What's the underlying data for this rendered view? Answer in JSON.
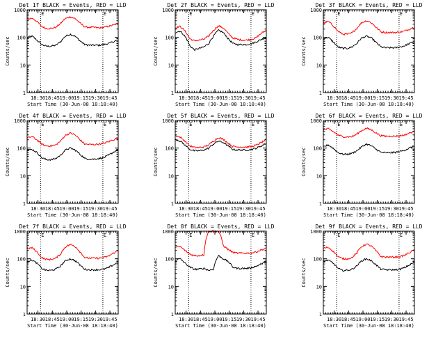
{
  "figure": {
    "ylabel": "Counts/sec",
    "xlabel": "Start Time (30-Jun-08 18:18:40)",
    "y_tick_labels": [
      "1",
      "10",
      "100",
      "1000"
    ],
    "x_tick_labels": [
      "18:30",
      "18:45",
      "19:00",
      "19:15",
      "19:30",
      "19:45"
    ],
    "marker_label": "E",
    "colors": {
      "events": "#000000",
      "lld": "#ff0000",
      "axes": "#000000",
      "background": "#ffffff"
    }
  },
  "chart_data": [
    {
      "type": "line",
      "title": "Det 1f BLACK = Events, RED = LLD",
      "yscale": "log",
      "ylim": [
        1,
        1000
      ],
      "xlim_minutes": [
        0,
        95
      ],
      "x_tick_minutes": [
        11.33,
        26.33,
        41.33,
        56.33,
        71.33,
        86.33
      ],
      "dotted_markers_minutes": [
        14,
        79
      ],
      "series": [
        {
          "name": "Events",
          "color": "#000000",
          "x_minutes": [
            0,
            5,
            10,
            15,
            20,
            25,
            30,
            35,
            40,
            45,
            50,
            55,
            60,
            65,
            70,
            75,
            80,
            85,
            90,
            95
          ],
          "values": [
            100,
            110,
            80,
            55,
            48,
            48,
            52,
            70,
            110,
            130,
            110,
            75,
            55,
            52,
            52,
            52,
            55,
            60,
            70,
            80
          ]
        },
        {
          "name": "LLD",
          "color": "#ff0000",
          "x_minutes": [
            0,
            5,
            10,
            15,
            20,
            25,
            30,
            35,
            40,
            45,
            50,
            55,
            60,
            65,
            70,
            75,
            80,
            85,
            90,
            95
          ],
          "values": [
            450,
            500,
            380,
            250,
            210,
            210,
            230,
            320,
            480,
            550,
            480,
            330,
            240,
            230,
            230,
            220,
            230,
            250,
            280,
            320
          ]
        }
      ]
    },
    {
      "type": "line",
      "title": "Det 2f BLACK = Events, RED = LLD",
      "yscale": "log",
      "ylim": [
        1,
        1000
      ],
      "xlim_minutes": [
        0,
        95
      ],
      "x_tick_minutes": [
        11.33,
        26.33,
        41.33,
        56.33,
        71.33,
        86.33
      ],
      "dotted_markers_minutes": [
        14,
        79
      ],
      "series": [
        {
          "name": "Events",
          "color": "#000000",
          "x_minutes": [
            0,
            5,
            10,
            15,
            20,
            25,
            30,
            35,
            40,
            45,
            50,
            55,
            60,
            65,
            70,
            75,
            80,
            85,
            90,
            95
          ],
          "values": [
            150,
            170,
            110,
            50,
            35,
            40,
            45,
            60,
            110,
            180,
            150,
            90,
            60,
            55,
            55,
            55,
            60,
            70,
            85,
            100
          ]
        },
        {
          "name": "LLD",
          "color": "#ff0000",
          "x_minutes": [
            0,
            5,
            10,
            15,
            20,
            25,
            30,
            35,
            40,
            45,
            50,
            55,
            60,
            65,
            70,
            75,
            80,
            85,
            90,
            95
          ],
          "values": [
            220,
            250,
            170,
            90,
            75,
            80,
            85,
            110,
            180,
            260,
            220,
            140,
            95,
            85,
            80,
            80,
            85,
            100,
            140,
            180
          ]
        }
      ]
    },
    {
      "type": "line",
      "title": "Det 3f BLACK = Events, RED = LLD",
      "yscale": "log",
      "ylim": [
        1,
        1000
      ],
      "xlim_minutes": [
        0,
        95
      ],
      "x_tick_minutes": [
        11.33,
        26.33,
        41.33,
        56.33,
        71.33,
        86.33
      ],
      "dotted_markers_minutes": [
        14,
        79
      ],
      "series": [
        {
          "name": "Events",
          "color": "#000000",
          "x_minutes": [
            0,
            5,
            10,
            15,
            20,
            25,
            30,
            35,
            40,
            45,
            50,
            55,
            60,
            65,
            70,
            75,
            80,
            85,
            90,
            95
          ],
          "values": [
            90,
            100,
            70,
            45,
            40,
            40,
            45,
            60,
            95,
            110,
            95,
            65,
            45,
            42,
            42,
            42,
            45,
            50,
            60,
            70
          ]
        },
        {
          "name": "LLD",
          "color": "#ff0000",
          "x_minutes": [
            0,
            5,
            10,
            15,
            20,
            25,
            30,
            35,
            40,
            45,
            50,
            55,
            60,
            65,
            70,
            75,
            80,
            85,
            90,
            95
          ],
          "values": [
            320,
            380,
            270,
            170,
            130,
            130,
            145,
            210,
            340,
            400,
            340,
            230,
            160,
            150,
            150,
            150,
            155,
            170,
            200,
            240
          ]
        }
      ]
    },
    {
      "type": "line",
      "title": "Det 4f BLACK = Events, RED = LLD",
      "yscale": "log",
      "ylim": [
        1,
        1000
      ],
      "xlim_minutes": [
        0,
        95
      ],
      "x_tick_minutes": [
        11.33,
        26.33,
        41.33,
        56.33,
        71.33,
        86.33
      ],
      "dotted_markers_minutes": [
        14,
        79
      ],
      "series": [
        {
          "name": "Events",
          "color": "#000000",
          "x_minutes": [
            0,
            5,
            10,
            15,
            20,
            25,
            30,
            35,
            40,
            45,
            50,
            55,
            60,
            65,
            70,
            75,
            80,
            85,
            90,
            95
          ],
          "values": [
            80,
            90,
            70,
            45,
            38,
            38,
            42,
            55,
            85,
            100,
            85,
            60,
            42,
            40,
            40,
            42,
            45,
            55,
            70,
            90
          ]
        },
        {
          "name": "LLD",
          "color": "#ff0000",
          "x_minutes": [
            0,
            5,
            10,
            15,
            20,
            25,
            30,
            35,
            40,
            45,
            50,
            55,
            60,
            65,
            70,
            75,
            80,
            85,
            90,
            95
          ],
          "values": [
            230,
            260,
            200,
            140,
            120,
            120,
            130,
            180,
            290,
            350,
            300,
            200,
            140,
            135,
            135,
            140,
            150,
            170,
            200,
            240
          ]
        }
      ]
    },
    {
      "type": "line",
      "title": "Det 5f BLACK = Events, RED = LLD",
      "yscale": "log",
      "ylim": [
        1,
        1000
      ],
      "xlim_minutes": [
        0,
        95
      ],
      "x_tick_minutes": [
        11.33,
        26.33,
        41.33,
        56.33,
        71.33,
        86.33
      ],
      "dotted_markers_minutes": [
        14,
        79
      ],
      "series": [
        {
          "name": "Events",
          "color": "#000000",
          "x_minutes": [
            0,
            5,
            10,
            15,
            20,
            25,
            30,
            35,
            40,
            45,
            50,
            55,
            60,
            65,
            70,
            75,
            80,
            85,
            90,
            95
          ],
          "values": [
            210,
            180,
            130,
            90,
            80,
            80,
            85,
            100,
            140,
            180,
            160,
            120,
            90,
            85,
            85,
            85,
            90,
            100,
            120,
            150
          ]
        },
        {
          "name": "LLD",
          "color": "#ff0000",
          "x_minutes": [
            0,
            5,
            10,
            15,
            20,
            25,
            30,
            35,
            40,
            45,
            50,
            55,
            60,
            65,
            70,
            75,
            80,
            85,
            90,
            95
          ],
          "values": [
            280,
            250,
            180,
            120,
            105,
            105,
            110,
            130,
            180,
            240,
            210,
            150,
            115,
            110,
            110,
            110,
            115,
            130,
            160,
            200
          ]
        }
      ]
    },
    {
      "type": "line",
      "title": "Det 6f BLACK = Events, RED = LLD",
      "yscale": "log",
      "ylim": [
        1,
        1000
      ],
      "xlim_minutes": [
        0,
        95
      ],
      "x_tick_minutes": [
        11.33,
        26.33,
        41.33,
        56.33,
        71.33,
        86.33
      ],
      "dotted_markers_minutes": [
        14,
        79
      ],
      "series": [
        {
          "name": "Events",
          "color": "#000000",
          "x_minutes": [
            0,
            5,
            10,
            15,
            20,
            25,
            30,
            35,
            40,
            45,
            50,
            55,
            60,
            65,
            70,
            75,
            80,
            85,
            90,
            95
          ],
          "values": [
            110,
            130,
            100,
            70,
            60,
            60,
            65,
            80,
            110,
            140,
            120,
            90,
            70,
            68,
            68,
            70,
            75,
            85,
            100,
            120
          ]
        },
        {
          "name": "LLD",
          "color": "#ff0000",
          "x_minutes": [
            0,
            5,
            10,
            15,
            20,
            25,
            30,
            35,
            40,
            45,
            50,
            55,
            60,
            65,
            70,
            75,
            80,
            85,
            90,
            95
          ],
          "values": [
            450,
            500,
            400,
            300,
            260,
            255,
            260,
            320,
            430,
            520,
            460,
            350,
            280,
            270,
            270,
            270,
            280,
            300,
            350,
            400
          ]
        }
      ]
    },
    {
      "type": "line",
      "title": "Det 7f BLACK = Events, RED = LLD",
      "yscale": "log",
      "ylim": [
        1,
        1000
      ],
      "xlim_minutes": [
        0,
        95
      ],
      "x_tick_minutes": [
        11.33,
        26.33,
        41.33,
        56.33,
        71.33,
        86.33
      ],
      "dotted_markers_minutes": [
        14,
        79
      ],
      "series": [
        {
          "name": "Events",
          "color": "#000000",
          "x_minutes": [
            0,
            5,
            10,
            15,
            20,
            25,
            30,
            35,
            40,
            45,
            50,
            55,
            60,
            65,
            70,
            75,
            80,
            85,
            90,
            95
          ],
          "values": [
            80,
            90,
            70,
            45,
            38,
            38,
            42,
            55,
            85,
            100,
            85,
            60,
            42,
            40,
            40,
            40,
            42,
            48,
            60,
            75
          ]
        },
        {
          "name": "LLD",
          "color": "#ff0000",
          "x_minutes": [
            0,
            5,
            10,
            15,
            20,
            25,
            30,
            35,
            40,
            45,
            50,
            55,
            60,
            65,
            70,
            75,
            80,
            85,
            90,
            95
          ],
          "values": [
            230,
            250,
            180,
            110,
            95,
            95,
            105,
            150,
            270,
            330,
            280,
            180,
            110,
            105,
            105,
            105,
            110,
            125,
            160,
            200
          ]
        }
      ]
    },
    {
      "type": "line",
      "title": "Det 8f BLACK = Events, RED = LLD",
      "yscale": "log",
      "ylim": [
        1,
        1000
      ],
      "xlim_minutes": [
        0,
        95
      ],
      "x_tick_minutes": [
        11.33,
        26.33,
        41.33,
        56.33,
        71.33,
        86.33
      ],
      "dotted_markers_minutes": [
        14,
        79
      ],
      "series": [
        {
          "name": "Events",
          "color": "#000000",
          "x_minutes": [
            0,
            5,
            10,
            15,
            20,
            25,
            30,
            35,
            40,
            45,
            50,
            55,
            60,
            65,
            70,
            75,
            80,
            85,
            90,
            95
          ],
          "values": [
            90,
            100,
            70,
            50,
            42,
            42,
            45,
            38,
            42,
            130,
            100,
            80,
            50,
            45,
            45,
            45,
            48,
            55,
            65,
            80
          ]
        },
        {
          "name": "LLD",
          "color": "#ff0000",
          "x_minutes": [
            0,
            5,
            10,
            15,
            20,
            25,
            30,
            35,
            40,
            45,
            50,
            55,
            60,
            65,
            70,
            75,
            80,
            85,
            90,
            95
          ],
          "values": [
            250,
            280,
            200,
            150,
            130,
            130,
            140,
            1000,
            1000,
            1000,
            300,
            220,
            170,
            160,
            160,
            160,
            165,
            180,
            210,
            240
          ]
        }
      ]
    },
    {
      "type": "line",
      "title": "Det 9f BLACK = Events, RED = LLD",
      "yscale": "log",
      "ylim": [
        1,
        1000
      ],
      "xlim_minutes": [
        0,
        95
      ],
      "x_tick_minutes": [
        11.33,
        26.33,
        41.33,
        56.33,
        71.33,
        86.33
      ],
      "dotted_markers_minutes": [
        14,
        79
      ],
      "series": [
        {
          "name": "Events",
          "color": "#000000",
          "x_minutes": [
            0,
            5,
            10,
            15,
            20,
            25,
            30,
            35,
            40,
            45,
            50,
            55,
            60,
            65,
            70,
            75,
            80,
            85,
            90,
            95
          ],
          "values": [
            80,
            90,
            70,
            45,
            38,
            38,
            42,
            55,
            85,
            100,
            85,
            60,
            42,
            40,
            40,
            40,
            42,
            48,
            60,
            75
          ]
        },
        {
          "name": "LLD",
          "color": "#ff0000",
          "x_minutes": [
            0,
            5,
            10,
            15,
            20,
            25,
            30,
            35,
            40,
            45,
            50,
            55,
            60,
            65,
            70,
            75,
            80,
            85,
            90,
            95
          ],
          "values": [
            240,
            260,
            190,
            120,
            100,
            100,
            110,
            160,
            280,
            340,
            290,
            190,
            120,
            115,
            115,
            115,
            120,
            135,
            170,
            210
          ]
        }
      ]
    }
  ]
}
